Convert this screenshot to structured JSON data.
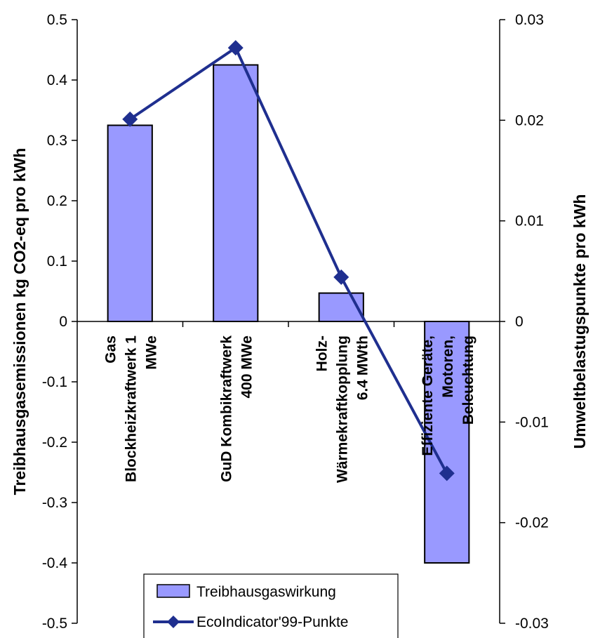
{
  "chart_data": {
    "type": "bar",
    "categories": [
      [
        "Gas",
        "Blockheizkraftwerk 1",
        "MWe"
      ],
      [
        "GuD Kombikraftwerk",
        "400 MWe"
      ],
      [
        "Holz-",
        "Wärmekraftkopplung",
        "6.4 MWth"
      ],
      [
        "Effiziente Geräte,",
        "Motoren,",
        "Beleuchtung"
      ]
    ],
    "series": [
      {
        "name": "Treibhausgaswirkung",
        "type": "bar",
        "axis": "left",
        "color": "#9999ff",
        "values": [
          0.325,
          0.425,
          0.047,
          -0.4
        ]
      },
      {
        "name": "EcoIndicator'99-Punkte",
        "type": "line",
        "axis": "right",
        "color": "#1f2f8f",
        "values": [
          0.0201,
          0.0272,
          0.0044,
          -0.0151
        ]
      }
    ],
    "ylabel": "Treibhausgasemissionen kg CO2-eq pro kWh",
    "y2label": "Umweltbelastugspunkte pro kWh",
    "ylim": [
      -0.5,
      0.5
    ],
    "y2lim": [
      -0.03,
      0.03
    ],
    "yticks": [
      "0.5",
      "0.4",
      "0.3",
      "0.2",
      "0.1",
      "0",
      "-0.1",
      "-0.2",
      "-0.3",
      "-0.4",
      "-0.5"
    ],
    "y2ticks": [
      "0.03",
      "0.02",
      "0.01",
      "0",
      "-0.01",
      "-0.02",
      "-0.03"
    ],
    "grid": false,
    "legend": "bottom-center"
  }
}
